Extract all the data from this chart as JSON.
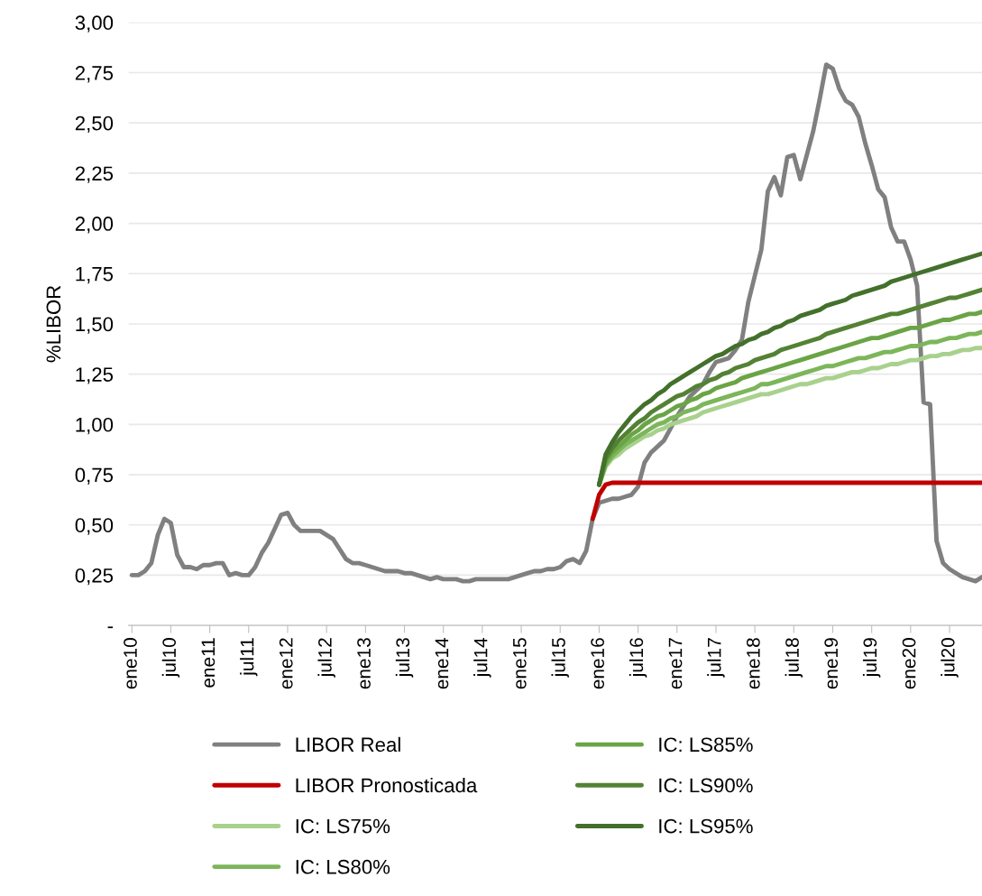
{
  "chart_data": {
    "type": "line",
    "ylabel": "%LIBOR",
    "categories": [
      "ene10",
      null,
      null,
      null,
      null,
      null,
      "jul10",
      null,
      null,
      null,
      null,
      null,
      "ene11",
      null,
      null,
      null,
      null,
      null,
      "jul11",
      null,
      null,
      null,
      null,
      null,
      "ene12",
      null,
      null,
      null,
      null,
      null,
      "jul12",
      null,
      null,
      null,
      null,
      null,
      "ene13",
      null,
      null,
      null,
      null,
      null,
      "jul13",
      null,
      null,
      null,
      null,
      null,
      "ene14",
      null,
      null,
      null,
      null,
      null,
      "jul14",
      null,
      null,
      null,
      null,
      null,
      "ene15",
      null,
      null,
      null,
      null,
      null,
      "jul15",
      null,
      null,
      null,
      null,
      null,
      "ene16",
      null,
      null,
      null,
      null,
      null,
      "jul16",
      null,
      null,
      null,
      null,
      null,
      "ene17",
      null,
      null,
      null,
      null,
      null,
      "jul17",
      null,
      null,
      null,
      null,
      null,
      "ene18",
      null,
      null,
      null,
      null,
      null,
      "jul18",
      null,
      null,
      null,
      null,
      null,
      "ene19",
      null,
      null,
      null,
      null,
      null,
      "jul19",
      null,
      null,
      null,
      null,
      null,
      "ene20",
      null,
      null,
      null,
      null,
      null,
      "jul20",
      null,
      null,
      null,
      null,
      null
    ],
    "series": [
      {
        "name": "LIBOR Real",
        "color": "#808080",
        "values": [
          0.25,
          0.25,
          0.27,
          0.31,
          0.45,
          0.53,
          0.51,
          0.35,
          0.29,
          0.29,
          0.28,
          0.3,
          0.3,
          0.31,
          0.31,
          0.25,
          0.26,
          0.25,
          0.25,
          0.29,
          0.36,
          0.41,
          0.48,
          0.55,
          0.56,
          0.5,
          0.47,
          0.47,
          0.47,
          0.47,
          0.45,
          0.43,
          0.38,
          0.33,
          0.31,
          0.31,
          0.3,
          0.29,
          0.28,
          0.27,
          0.27,
          0.27,
          0.26,
          0.26,
          0.25,
          0.24,
          0.23,
          0.24,
          0.23,
          0.23,
          0.23,
          0.22,
          0.22,
          0.23,
          0.23,
          0.23,
          0.23,
          0.23,
          0.23,
          0.24,
          0.25,
          0.26,
          0.27,
          0.27,
          0.28,
          0.28,
          0.29,
          0.32,
          0.33,
          0.31,
          0.37,
          0.53,
          0.61,
          0.62,
          0.63,
          0.63,
          0.64,
          0.65,
          0.69,
          0.81,
          0.86,
          0.89,
          0.92,
          0.98,
          1.04,
          1.09,
          1.14,
          1.17,
          1.2,
          1.26,
          1.31,
          1.32,
          1.33,
          1.37,
          1.42,
          1.61,
          1.74,
          1.87,
          2.16,
          2.23,
          2.14,
          2.33,
          2.34,
          2.22,
          2.34,
          2.46,
          2.62,
          2.79,
          2.77,
          2.67,
          2.61,
          2.59,
          2.53,
          2.4,
          2.29,
          2.17,
          2.13,
          1.98,
          1.91,
          1.91,
          1.82,
          1.69,
          1.11,
          1.1,
          0.42,
          0.31,
          0.28,
          0.26,
          0.24,
          0.23,
          0.22,
          0.24
        ]
      },
      {
        "name": "LIBOR Pronosticada",
        "color": "#c00000",
        "values": [
          null,
          null,
          null,
          null,
          null,
          null,
          null,
          null,
          null,
          null,
          null,
          null,
          null,
          null,
          null,
          null,
          null,
          null,
          null,
          null,
          null,
          null,
          null,
          null,
          null,
          null,
          null,
          null,
          null,
          null,
          null,
          null,
          null,
          null,
          null,
          null,
          null,
          null,
          null,
          null,
          null,
          null,
          null,
          null,
          null,
          null,
          null,
          null,
          null,
          null,
          null,
          null,
          null,
          null,
          null,
          null,
          null,
          null,
          null,
          null,
          null,
          null,
          null,
          null,
          null,
          null,
          null,
          null,
          null,
          null,
          null,
          0.53,
          0.65,
          0.7,
          0.71,
          0.71,
          0.71,
          0.71,
          0.71,
          0.71,
          0.71,
          0.71,
          0.71,
          0.71,
          0.71,
          0.71,
          0.71,
          0.71,
          0.71,
          0.71,
          0.71,
          0.71,
          0.71,
          0.71,
          0.71,
          0.71,
          0.71,
          0.71,
          0.71,
          0.71,
          0.71,
          0.71,
          0.71,
          0.71,
          0.71,
          0.71,
          0.71,
          0.71,
          0.71,
          0.71,
          0.71,
          0.71,
          0.71,
          0.71,
          0.71,
          0.71,
          0.71,
          0.71,
          0.71,
          0.71,
          0.71,
          0.71,
          0.71,
          0.71,
          0.71,
          0.71,
          0.71,
          0.71,
          0.71,
          0.71,
          0.71,
          0.71
        ]
      },
      {
        "name": "IC: LS75%",
        "color": "#a9d18e",
        "values": [
          null,
          null,
          null,
          null,
          null,
          null,
          null,
          null,
          null,
          null,
          null,
          null,
          null,
          null,
          null,
          null,
          null,
          null,
          null,
          null,
          null,
          null,
          null,
          null,
          null,
          null,
          null,
          null,
          null,
          null,
          null,
          null,
          null,
          null,
          null,
          null,
          null,
          null,
          null,
          null,
          null,
          null,
          null,
          null,
          null,
          null,
          null,
          null,
          null,
          null,
          null,
          null,
          null,
          null,
          null,
          null,
          null,
          null,
          null,
          null,
          null,
          null,
          null,
          null,
          null,
          null,
          null,
          null,
          null,
          null,
          null,
          null,
          0.7,
          0.79,
          0.83,
          0.85,
          0.88,
          0.9,
          0.92,
          0.94,
          0.95,
          0.97,
          0.98,
          1.0,
          1.01,
          1.02,
          1.03,
          1.04,
          1.06,
          1.07,
          1.08,
          1.09,
          1.1,
          1.11,
          1.12,
          1.13,
          1.14,
          1.15,
          1.15,
          1.16,
          1.17,
          1.18,
          1.19,
          1.2,
          1.2,
          1.21,
          1.22,
          1.23,
          1.23,
          1.24,
          1.25,
          1.26,
          1.26,
          1.27,
          1.28,
          1.28,
          1.29,
          1.3,
          1.3,
          1.31,
          1.32,
          1.32,
          1.33,
          1.34,
          1.34,
          1.35,
          1.35,
          1.36,
          1.37,
          1.37,
          1.38,
          1.38
        ]
      },
      {
        "name": "IC: LS80%",
        "color": "#7cb65a",
        "values": [
          null,
          null,
          null,
          null,
          null,
          null,
          null,
          null,
          null,
          null,
          null,
          null,
          null,
          null,
          null,
          null,
          null,
          null,
          null,
          null,
          null,
          null,
          null,
          null,
          null,
          null,
          null,
          null,
          null,
          null,
          null,
          null,
          null,
          null,
          null,
          null,
          null,
          null,
          null,
          null,
          null,
          null,
          null,
          null,
          null,
          null,
          null,
          null,
          null,
          null,
          null,
          null,
          null,
          null,
          null,
          null,
          null,
          null,
          null,
          null,
          null,
          null,
          null,
          null,
          null,
          null,
          null,
          null,
          null,
          null,
          null,
          null,
          0.7,
          0.8,
          0.84,
          0.87,
          0.9,
          0.92,
          0.94,
          0.96,
          0.98,
          1.0,
          1.01,
          1.03,
          1.04,
          1.06,
          1.07,
          1.08,
          1.1,
          1.11,
          1.12,
          1.13,
          1.14,
          1.15,
          1.16,
          1.17,
          1.18,
          1.2,
          1.2,
          1.21,
          1.22,
          1.23,
          1.24,
          1.25,
          1.26,
          1.27,
          1.28,
          1.29,
          1.29,
          1.3,
          1.31,
          1.32,
          1.33,
          1.33,
          1.34,
          1.35,
          1.36,
          1.36,
          1.37,
          1.38,
          1.39,
          1.39,
          1.4,
          1.41,
          1.41,
          1.42,
          1.43,
          1.43,
          1.44,
          1.45,
          1.45,
          1.46
        ]
      },
      {
        "name": "IC: LS85%",
        "color": "#6aa446",
        "values": [
          null,
          null,
          null,
          null,
          null,
          null,
          null,
          null,
          null,
          null,
          null,
          null,
          null,
          null,
          null,
          null,
          null,
          null,
          null,
          null,
          null,
          null,
          null,
          null,
          null,
          null,
          null,
          null,
          null,
          null,
          null,
          null,
          null,
          null,
          null,
          null,
          null,
          null,
          null,
          null,
          null,
          null,
          null,
          null,
          null,
          null,
          null,
          null,
          null,
          null,
          null,
          null,
          null,
          null,
          null,
          null,
          null,
          null,
          null,
          null,
          null,
          null,
          null,
          null,
          null,
          null,
          null,
          null,
          null,
          null,
          null,
          null,
          0.7,
          0.81,
          0.86,
          0.89,
          0.92,
          0.95,
          0.97,
          1.0,
          1.02,
          1.04,
          1.05,
          1.07,
          1.09,
          1.1,
          1.12,
          1.13,
          1.15,
          1.16,
          1.18,
          1.19,
          1.2,
          1.21,
          1.23,
          1.24,
          1.25,
          1.26,
          1.27,
          1.28,
          1.29,
          1.3,
          1.31,
          1.32,
          1.33,
          1.34,
          1.35,
          1.36,
          1.37,
          1.38,
          1.39,
          1.4,
          1.41,
          1.42,
          1.43,
          1.43,
          1.44,
          1.45,
          1.46,
          1.47,
          1.48,
          1.48,
          1.49,
          1.5,
          1.51,
          1.52,
          1.52,
          1.53,
          1.54,
          1.55,
          1.55,
          1.56
        ]
      },
      {
        "name": "IC: LS90%",
        "color": "#548235",
        "values": [
          null,
          null,
          null,
          null,
          null,
          null,
          null,
          null,
          null,
          null,
          null,
          null,
          null,
          null,
          null,
          null,
          null,
          null,
          null,
          null,
          null,
          null,
          null,
          null,
          null,
          null,
          null,
          null,
          null,
          null,
          null,
          null,
          null,
          null,
          null,
          null,
          null,
          null,
          null,
          null,
          null,
          null,
          null,
          null,
          null,
          null,
          null,
          null,
          null,
          null,
          null,
          null,
          null,
          null,
          null,
          null,
          null,
          null,
          null,
          null,
          null,
          null,
          null,
          null,
          null,
          null,
          null,
          null,
          null,
          null,
          null,
          null,
          0.7,
          0.83,
          0.88,
          0.92,
          0.95,
          0.98,
          1.01,
          1.03,
          1.06,
          1.08,
          1.1,
          1.12,
          1.14,
          1.15,
          1.17,
          1.19,
          1.2,
          1.22,
          1.23,
          1.25,
          1.26,
          1.28,
          1.29,
          1.3,
          1.32,
          1.33,
          1.34,
          1.35,
          1.37,
          1.38,
          1.39,
          1.4,
          1.41,
          1.42,
          1.43,
          1.45,
          1.46,
          1.47,
          1.48,
          1.49,
          1.5,
          1.51,
          1.52,
          1.53,
          1.54,
          1.55,
          1.55,
          1.56,
          1.57,
          1.58,
          1.59,
          1.6,
          1.61,
          1.62,
          1.63,
          1.63,
          1.64,
          1.65,
          1.66,
          1.67
        ]
      },
      {
        "name": "IC: LS95%",
        "color": "#43702b",
        "values": [
          null,
          null,
          null,
          null,
          null,
          null,
          null,
          null,
          null,
          null,
          null,
          null,
          null,
          null,
          null,
          null,
          null,
          null,
          null,
          null,
          null,
          null,
          null,
          null,
          null,
          null,
          null,
          null,
          null,
          null,
          null,
          null,
          null,
          null,
          null,
          null,
          null,
          null,
          null,
          null,
          null,
          null,
          null,
          null,
          null,
          null,
          null,
          null,
          null,
          null,
          null,
          null,
          null,
          null,
          null,
          null,
          null,
          null,
          null,
          null,
          null,
          null,
          null,
          null,
          null,
          null,
          null,
          null,
          null,
          null,
          null,
          null,
          0.7,
          0.85,
          0.91,
          0.96,
          1.0,
          1.04,
          1.07,
          1.1,
          1.12,
          1.15,
          1.17,
          1.2,
          1.22,
          1.24,
          1.26,
          1.28,
          1.3,
          1.32,
          1.34,
          1.35,
          1.37,
          1.39,
          1.4,
          1.42,
          1.43,
          1.45,
          1.46,
          1.48,
          1.49,
          1.51,
          1.52,
          1.54,
          1.55,
          1.56,
          1.57,
          1.59,
          1.6,
          1.61,
          1.62,
          1.64,
          1.65,
          1.66,
          1.67,
          1.68,
          1.69,
          1.71,
          1.72,
          1.73,
          1.74,
          1.75,
          1.76,
          1.77,
          1.78,
          1.79,
          1.8,
          1.81,
          1.82,
          1.83,
          1.84,
          1.85
        ]
      }
    ],
    "ylim": [
      0,
      3
    ],
    "yticks": [
      {
        "value": 0,
        "label": "-"
      },
      {
        "value": 0.25,
        "label": "0,25"
      },
      {
        "value": 0.5,
        "label": "0,50"
      },
      {
        "value": 0.75,
        "label": "0,75"
      },
      {
        "value": 1,
        "label": "1,00"
      },
      {
        "value": 1.25,
        "label": "1,25"
      },
      {
        "value": 1.5,
        "label": "1,50"
      },
      {
        "value": 1.75,
        "label": "1,75"
      },
      {
        "value": 2,
        "label": "2,00"
      },
      {
        "value": 2.25,
        "label": "2,25"
      },
      {
        "value": 2.5,
        "label": "2,50"
      },
      {
        "value": 2.75,
        "label": "2,75"
      },
      {
        "value": 3,
        "label": "3,00"
      }
    ],
    "grid": "y",
    "legend": "bottom",
    "marker": "none",
    "line_style": "solid"
  }
}
